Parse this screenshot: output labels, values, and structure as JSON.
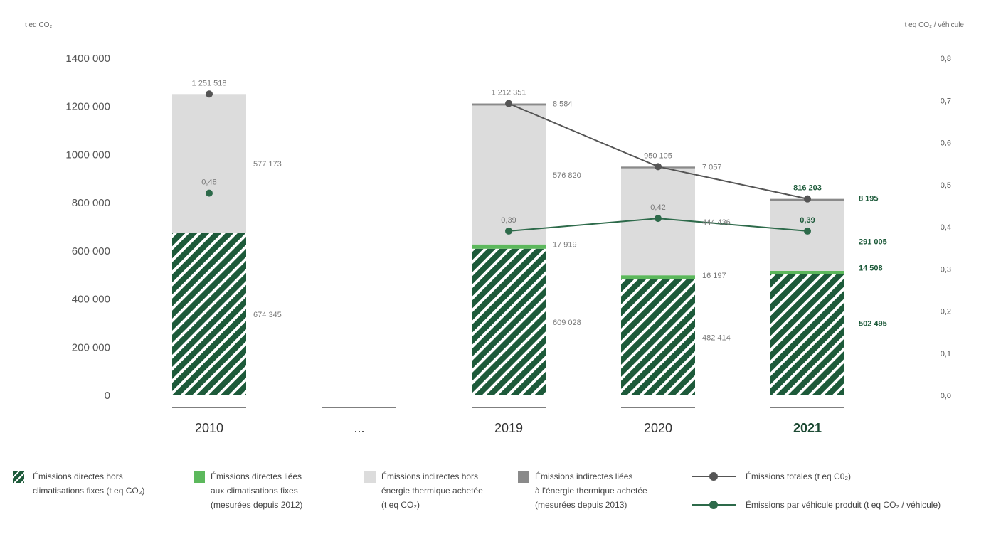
{
  "chart_data": {
    "type": "bar",
    "y_left_label": "t eq CO₂",
    "y_right_label": "t eq CO₂ / véhicule",
    "ylim_left": [
      0,
      1400000
    ],
    "ylim_right": [
      0.0,
      0.8
    ],
    "y_left_ticks": [
      "1400 000",
      "1200 000",
      "1000 000",
      "800 000",
      "600 000",
      "400 000",
      "200 000",
      "0"
    ],
    "y_right_ticks": [
      "0,8",
      "0,7",
      "0,6",
      "0,5",
      "0,4",
      "0,3",
      "0,2",
      "0,1",
      "0,0"
    ],
    "categories": [
      "2010",
      "...",
      "2019",
      "2020",
      "2021"
    ],
    "highlight_category": "2021",
    "series": [
      {
        "name": "Émissions directes hors climatisations fixes (t eq CO₂)",
        "values": [
          674345,
          null,
          609028,
          482414,
          502495
        ],
        "labels": [
          "674 345",
          "",
          "609 028",
          "482 414",
          "502 495"
        ]
      },
      {
        "name": "Émissions directes liées aux climatisations fixes (mesurées depuis 2012)",
        "values": [
          null,
          null,
          17919,
          16197,
          14508
        ],
        "labels": [
          "",
          "",
          "17 919",
          "16 197",
          "14 508"
        ]
      },
      {
        "name": "Émissions indirectes hors énergie thermique achetée (t eq CO₂)",
        "values": [
          577173,
          null,
          576820,
          444436,
          291005
        ],
        "labels": [
          "577 173",
          "",
          "576 820",
          "444 436",
          "291 005"
        ]
      },
      {
        "name": "Émissions indirectes liées à l'énergie thermique achetée (mesurées depuis 2013)",
        "values": [
          null,
          null,
          8584,
          7057,
          8195
        ],
        "labels": [
          "",
          "",
          "8 584",
          "7 057",
          "8 195"
        ]
      }
    ],
    "lines": [
      {
        "name": "Émissions totales (t eq C0₂)",
        "axis": "left",
        "values": [
          1251518,
          null,
          1212351,
          950105,
          816203
        ],
        "labels": [
          "1 251 518",
          "",
          "1 212 351",
          "950 105",
          "816 203"
        ]
      },
      {
        "name": "Émissions par véhicule produit (t eq CO₂ / véhicule)",
        "axis": "right",
        "values": [
          0.48,
          null,
          0.39,
          0.42,
          0.39
        ],
        "labels": [
          "0,48",
          "",
          "0,39",
          "0,42",
          "0,39"
        ]
      }
    ],
    "colors": {
      "direct": "#1d5a3a",
      "clim": "#5cb85c",
      "indirect": "#dcdcdc",
      "thermal": "#8a8a8a",
      "total_line": "#555555",
      "vehicle_line": "#2d6a4a",
      "highlight": "#1d5a3a"
    },
    "legend_position": "bottom"
  },
  "legend": [
    {
      "key": "direct",
      "text": "Émissions directes hors\nclimatisations fixes (t eq CO₂)"
    },
    {
      "key": "clim",
      "text": "Émissions directes liées\naux climatisations fixes\n(mesurées depuis 2012)"
    },
    {
      "key": "indirect",
      "text": "Émissions indirectes hors\nénergie thermique achetée\n(t eq CO₂)"
    },
    {
      "key": "thermal",
      "text": "Émissions indirectes liées\nà l'énergie thermique achetée\n(mesurées depuis 2013)"
    },
    {
      "key": "total_line",
      "text": "Émissions totales (t eq C0₂)"
    },
    {
      "key": "vehicle_line",
      "text": "Émissions par véhicule produit (t eq CO₂ / véhicule)"
    }
  ]
}
